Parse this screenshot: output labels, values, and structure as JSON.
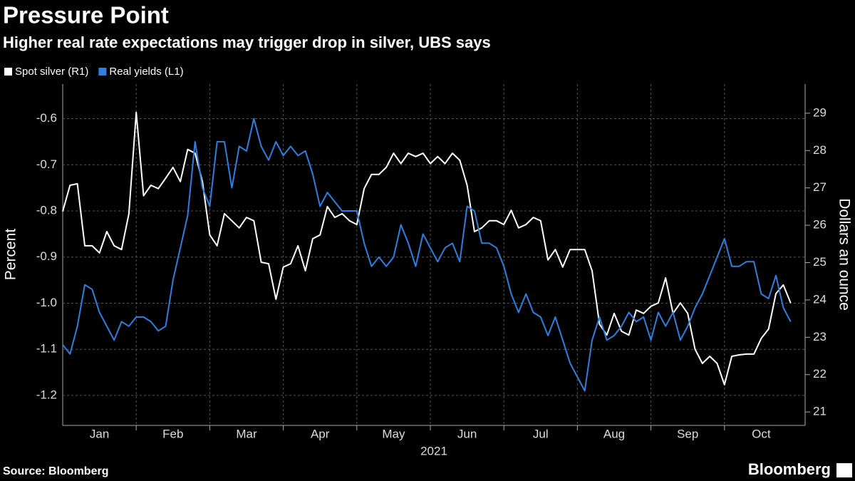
{
  "chart_data": {
    "type": "line",
    "title": "Pressure Point",
    "subtitle": "Higher real rate expectations may trigger drop in silver, UBS says",
    "y_label": "Percent",
    "y2_label": "Dollars an ounce",
    "x_label": "2021",
    "source": "Source: Bloomberg",
    "brand": "Bloomberg",
    "grid": true,
    "xlim": [
      0,
      10
    ],
    "xticks": [
      {
        "value": 0.5,
        "label": "Jan"
      },
      {
        "value": 1.5,
        "label": "Feb"
      },
      {
        "value": 2.5,
        "label": "Mar"
      },
      {
        "value": 3.5,
        "label": "Apr"
      },
      {
        "value": 4.5,
        "label": "May"
      },
      {
        "value": 5.5,
        "label": "Jun"
      },
      {
        "value": 6.5,
        "label": "Jul"
      },
      {
        "value": 7.5,
        "label": "Aug"
      },
      {
        "value": 8.5,
        "label": "Sep"
      },
      {
        "value": 9.5,
        "label": "Oct"
      }
    ],
    "ylim": [
      -1.265,
      -0.525
    ],
    "yticks": [
      -0.6,
      -0.7,
      -0.8,
      -0.9,
      {
        "value": -1,
        "label": "-1.0"
      },
      -1.1,
      -1.2
    ],
    "y2lim": [
      20.64,
      29.78
    ],
    "y2ticks": [
      21,
      22,
      23,
      24,
      25,
      26,
      27,
      28,
      29
    ],
    "x": [
      0,
      0.1,
      0.2,
      0.3,
      0.4,
      0.5,
      0.6,
      0.7,
      0.8,
      0.9,
      1,
      1.1,
      1.2,
      1.3,
      1.4,
      1.5,
      1.6,
      1.7,
      1.8,
      1.9,
      2,
      2.1,
      2.2,
      2.3,
      2.4,
      2.5,
      2.6,
      2.7,
      2.8,
      2.9,
      3,
      3.1,
      3.2,
      3.3,
      3.4,
      3.5,
      3.6,
      3.7,
      3.8,
      3.9,
      4,
      4.1,
      4.2,
      4.3,
      4.4,
      4.5,
      4.6,
      4.7,
      4.8,
      4.9,
      5,
      5.1,
      5.2,
      5.3,
      5.4,
      5.5,
      5.6,
      5.7,
      5.8,
      5.9,
      6,
      6.1,
      6.2,
      6.3,
      6.4,
      6.5,
      6.6,
      6.7,
      6.8,
      6.9,
      7,
      7.1,
      7.2,
      7.3,
      7.4,
      7.5,
      7.6,
      7.7,
      7.8,
      7.9,
      8,
      8.1,
      8.2,
      8.3,
      8.4,
      8.5,
      8.6,
      8.7,
      8.8,
      8.9,
      9,
      9.1,
      9.2,
      9.3,
      9.4,
      9.5,
      9.6,
      9.7,
      9.8,
      9.9
    ],
    "series": [
      {
        "name": "Spot silver (R1)",
        "color": "#ffffff",
        "axis": "y2",
        "values": [
          26.37,
          27.07,
          27.11,
          25.45,
          25.45,
          25.26,
          25.83,
          25.45,
          25.35,
          26.31,
          29.02,
          26.79,
          27.07,
          26.98,
          27.26,
          27.55,
          27.17,
          28.03,
          27.93,
          27.17,
          25.74,
          25.45,
          26.31,
          26.12,
          25.93,
          26.21,
          26.12,
          25.01,
          24.97,
          24.02,
          24.88,
          24.97,
          25.45,
          24.78,
          25.64,
          25.74,
          26.5,
          26.21,
          26.31,
          26.12,
          26.02,
          26.98,
          27.36,
          27.36,
          27.55,
          27.93,
          27.65,
          27.93,
          27.84,
          27.93,
          27.65,
          27.84,
          27.65,
          27.93,
          27.74,
          27.07,
          25.83,
          25.93,
          26.12,
          26.12,
          26.02,
          26.4,
          25.93,
          26.02,
          26.21,
          26.12,
          25.07,
          25.35,
          24.88,
          25.35,
          25.35,
          25.35,
          24.78,
          23.35,
          23.06,
          23.64,
          23.16,
          23.06,
          23.73,
          23.64,
          23.83,
          23.92,
          24.59,
          23.64,
          23.92,
          23.64,
          22.68,
          22.3,
          22.49,
          22.3,
          21.73,
          22.49,
          22.53,
          22.55,
          22.55,
          22.97,
          23.22,
          24.17,
          24.4,
          23.92
        ]
      },
      {
        "name": "Real yields (L1)",
        "color": "#2d7fe0",
        "values": [
          -1.09,
          -1.11,
          -1.05,
          -0.96,
          -0.97,
          -1.02,
          -1.05,
          -1.08,
          -1.04,
          -1.05,
          -1.03,
          -1.03,
          -1.04,
          -1.06,
          -1.05,
          -0.95,
          -0.88,
          -0.81,
          -0.65,
          -0.75,
          -0.79,
          -0.65,
          -0.65,
          -0.75,
          -0.66,
          -0.67,
          -0.6,
          -0.66,
          -0.69,
          -0.65,
          -0.68,
          -0.66,
          -0.68,
          -0.67,
          -0.72,
          -0.79,
          -0.76,
          -0.78,
          -0.8,
          -0.8,
          -0.8,
          -0.87,
          -0.92,
          -0.9,
          -0.92,
          -0.9,
          -0.83,
          -0.87,
          -0.92,
          -0.85,
          -0.88,
          -0.91,
          -0.88,
          -0.87,
          -0.91,
          -0.79,
          -0.8,
          -0.87,
          -0.87,
          -0.88,
          -0.92,
          -0.98,
          -1.02,
          -0.98,
          -1.02,
          -1.03,
          -1.07,
          -1.03,
          -1.08,
          -1.13,
          -1.16,
          -1.19,
          -1.08,
          -1.03,
          -1.08,
          -1.07,
          -1.05,
          -1.02,
          -1.04,
          -1.03,
          -1.08,
          -1.02,
          -1.05,
          -1.02,
          -1.08,
          -1.05,
          -1.01,
          -0.98,
          -0.94,
          -0.9,
          -0.86,
          -0.92,
          -0.92,
          -0.91,
          -0.91,
          -0.98,
          -0.99,
          -0.94,
          -1.01,
          -1.04
        ]
      }
    ]
  }
}
